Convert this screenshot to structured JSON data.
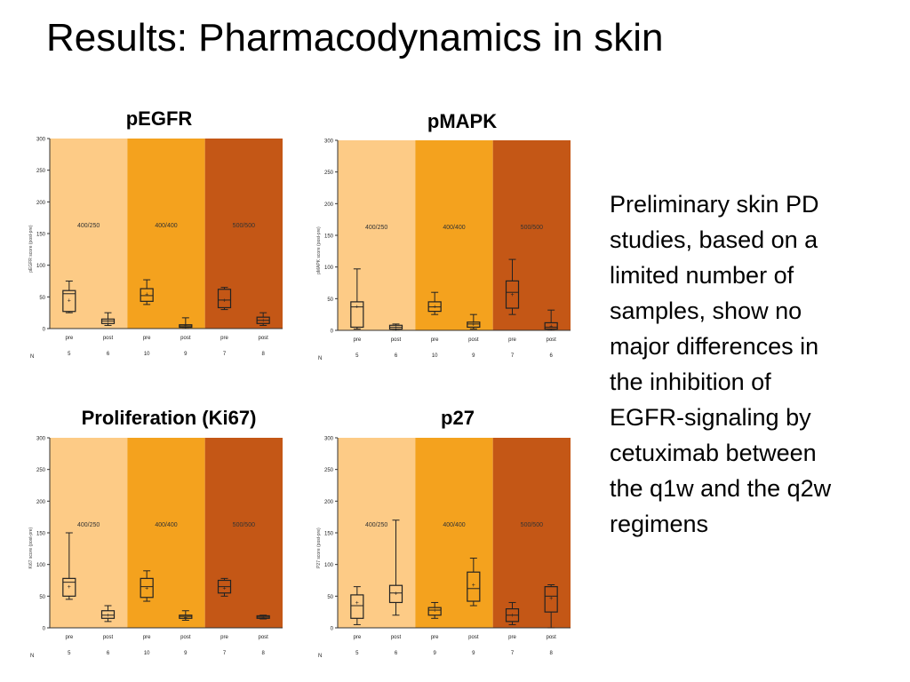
{
  "slide": {
    "title": "Results: Pharmacodynamics in skin",
    "body_lines": [
      "Preliminary skin PD",
      "studies, based on a",
      "limited number of",
      "samples, show no",
      "major differences in",
      "the inhibition of",
      "EGFR-signaling by",
      "cetuximab between",
      "the q1w and the q2w",
      "regimens"
    ]
  },
  "colors": {
    "band1": "#FDCB86",
    "band2": "#F4A21E",
    "band3": "#C45716"
  },
  "chart_data": [
    {
      "type": "box",
      "title": "pEGFR",
      "ylabel": "pEGFR score (post-pre)",
      "ylim": [
        0,
        300
      ],
      "yticks": [
        0,
        50,
        100,
        150,
        200,
        250,
        300
      ],
      "dose_groups": [
        "400/250",
        "400/400",
        "500/500"
      ],
      "categories": [
        "pre",
        "post",
        "pre",
        "post",
        "pre",
        "post"
      ],
      "n_label": "N",
      "n": [
        "5",
        "6",
        "10",
        "9",
        "7",
        "8"
      ],
      "boxes": [
        {
          "min": 25,
          "q1": 27,
          "median": 55,
          "q3": 60,
          "max": 75,
          "mean": 45
        },
        {
          "min": 5,
          "q1": 8,
          "median": 12,
          "q3": 15,
          "max": 25,
          "mean": 12
        },
        {
          "min": 38,
          "q1": 43,
          "median": 52,
          "q3": 63,
          "max": 77,
          "mean": 55
        },
        {
          "min": 0,
          "q1": 2,
          "median": 4,
          "q3": 6,
          "max": 17,
          "mean": 5
        },
        {
          "min": 30,
          "q1": 33,
          "median": 45,
          "q3": 62,
          "max": 65,
          "mean": 45
        },
        {
          "min": 5,
          "q1": 8,
          "median": 13,
          "q3": 18,
          "max": 25,
          "mean": 13
        }
      ]
    },
    {
      "type": "box",
      "title": "pMAPK",
      "ylabel": "pMAPK score (post-pre)",
      "ylim": [
        0,
        300
      ],
      "yticks": [
        0,
        50,
        100,
        150,
        200,
        250,
        300
      ],
      "dose_groups": [
        "400/250",
        "400/400",
        "500/500"
      ],
      "categories": [
        "pre",
        "post",
        "pre",
        "post",
        "pre",
        "post"
      ],
      "n_label": "N",
      "n": [
        "5",
        "6",
        "10",
        "9",
        "7",
        "6"
      ],
      "boxes": [
        {
          "min": 2,
          "q1": 5,
          "median": 37,
          "q3": 45,
          "max": 97,
          "mean": 38
        },
        {
          "min": 0,
          "q1": 2,
          "median": 5,
          "q3": 8,
          "max": 10,
          "mean": 5
        },
        {
          "min": 25,
          "q1": 30,
          "median": 37,
          "q3": 45,
          "max": 60,
          "mean": 38
        },
        {
          "min": 2,
          "q1": 5,
          "median": 10,
          "q3": 13,
          "max": 25,
          "mean": 10
        },
        {
          "min": 25,
          "q1": 35,
          "median": 60,
          "q3": 78,
          "max": 112,
          "mean": 57
        },
        {
          "min": 0,
          "q1": 2,
          "median": 5,
          "q3": 12,
          "max": 32,
          "mean": 7
        }
      ]
    },
    {
      "type": "box",
      "title": "Proliferation (Ki67)",
      "ylabel": "Ki67 score (post-pre)",
      "ylim": [
        0,
        300
      ],
      "yticks": [
        0,
        50,
        100,
        150,
        200,
        250,
        300
      ],
      "dose_groups": [
        "400/250",
        "400/400",
        "500/500"
      ],
      "categories": [
        "pre",
        "post",
        "pre",
        "post",
        "pre",
        "post"
      ],
      "n_label": "N",
      "n": [
        "5",
        "6",
        "10",
        "9",
        "7",
        "8"
      ],
      "boxes": [
        {
          "min": 45,
          "q1": 50,
          "median": 72,
          "q3": 78,
          "max": 150,
          "mean": 65
        },
        {
          "min": 10,
          "q1": 15,
          "median": 20,
          "q3": 27,
          "max": 35,
          "mean": 20
        },
        {
          "min": 42,
          "q1": 48,
          "median": 65,
          "q3": 78,
          "max": 90,
          "mean": 63
        },
        {
          "min": 12,
          "q1": 15,
          "median": 18,
          "q3": 20,
          "max": 27,
          "mean": 17
        },
        {
          "min": 50,
          "q1": 55,
          "median": 65,
          "q3": 75,
          "max": 78,
          "mean": 63
        },
        {
          "min": 14,
          "q1": 15,
          "median": 17,
          "q3": 19,
          "max": 20,
          "mean": 17
        }
      ]
    },
    {
      "type": "box",
      "title": "p27",
      "ylabel": "P27 score (post-pre)",
      "ylim": [
        0,
        300
      ],
      "yticks": [
        0,
        50,
        100,
        150,
        200,
        250,
        300
      ],
      "dose_groups": [
        "400/250",
        "400/400",
        "500/500"
      ],
      "categories": [
        "pre",
        "post",
        "pre",
        "post",
        "pre",
        "post"
      ],
      "n_label": "N",
      "n": [
        "5",
        "6",
        "9",
        "9",
        "7",
        "8"
      ],
      "boxes": [
        {
          "min": 5,
          "q1": 15,
          "median": 35,
          "q3": 52,
          "max": 65,
          "mean": 40
        },
        {
          "min": 20,
          "q1": 40,
          "median": 55,
          "q3": 67,
          "max": 170,
          "mean": 55
        },
        {
          "min": 15,
          "q1": 20,
          "median": 28,
          "q3": 32,
          "max": 40,
          "mean": 28
        },
        {
          "min": 35,
          "q1": 42,
          "median": 62,
          "q3": 88,
          "max": 110,
          "mean": 68
        },
        {
          "min": 5,
          "q1": 10,
          "median": 20,
          "q3": 30,
          "max": 40,
          "mean": 20
        },
        {
          "min": 0,
          "q1": 25,
          "median": 50,
          "q3": 65,
          "max": 68,
          "mean": 47
        }
      ]
    }
  ]
}
